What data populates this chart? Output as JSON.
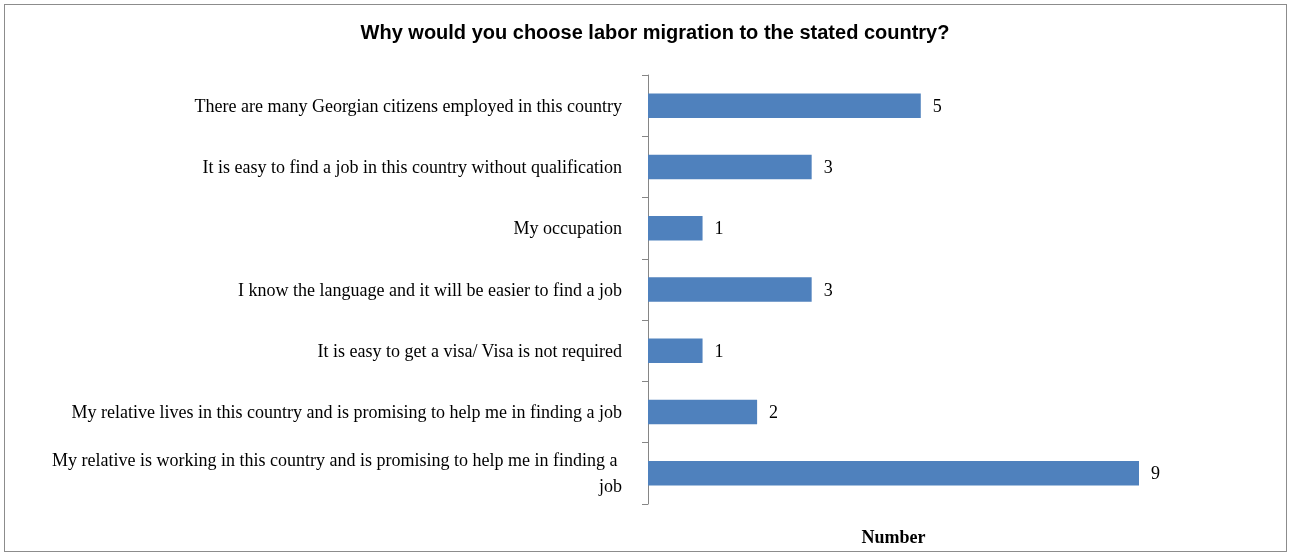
{
  "chart_data": {
    "type": "bar",
    "orientation": "horizontal",
    "title": "Why would you choose labor migration to the stated country?",
    "xlabel": "Number",
    "categories": [
      "There are many Georgian citizens employed in this country",
      "It is easy to find a job in this country without qualification",
      "My occupation",
      "I know the language and it will be easier to find a job",
      "It is easy to get a visa/ Visa is not required",
      "My relative lives in this country and is promising to help me in finding a job",
      "My relative is working in this country and is promising to help me in finding a job"
    ],
    "values": [
      5,
      3,
      1,
      3,
      1,
      2,
      9
    ],
    "color": "#4f81bd",
    "data_labels": true,
    "grid": false,
    "tick_labels": "y"
  }
}
